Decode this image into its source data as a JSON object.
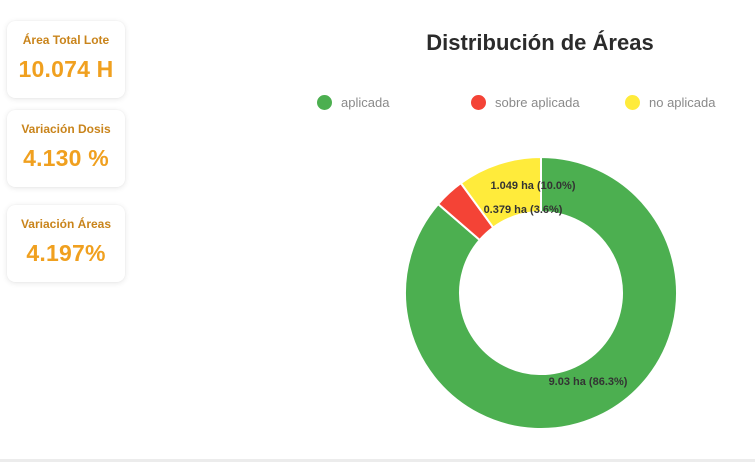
{
  "cards": [
    {
      "label": "Área Total Lote",
      "value": "10.074 H"
    },
    {
      "label": "Variación Dosis",
      "value": "4.130 %"
    },
    {
      "label": "Variación Áreas",
      "value": "4.197%"
    }
  ],
  "chart_data": {
    "type": "pie",
    "title": "Distribución de Áreas",
    "donut": true,
    "legend_position": "top",
    "series": [
      {
        "name": "aplicada",
        "value": 9.03,
        "percent": 86.3,
        "label": "9.03 ha (86.3%)",
        "color": "#4caf50"
      },
      {
        "name": "sobre aplicada",
        "value": 0.379,
        "percent": 3.6,
        "label": "0.379 ha (3.6%)",
        "color": "#f44336"
      },
      {
        "name": "no aplicada",
        "value": 1.049,
        "percent": 10.0,
        "label": "1.049 ha (10.0%)",
        "color": "#ffeb3b"
      }
    ]
  }
}
